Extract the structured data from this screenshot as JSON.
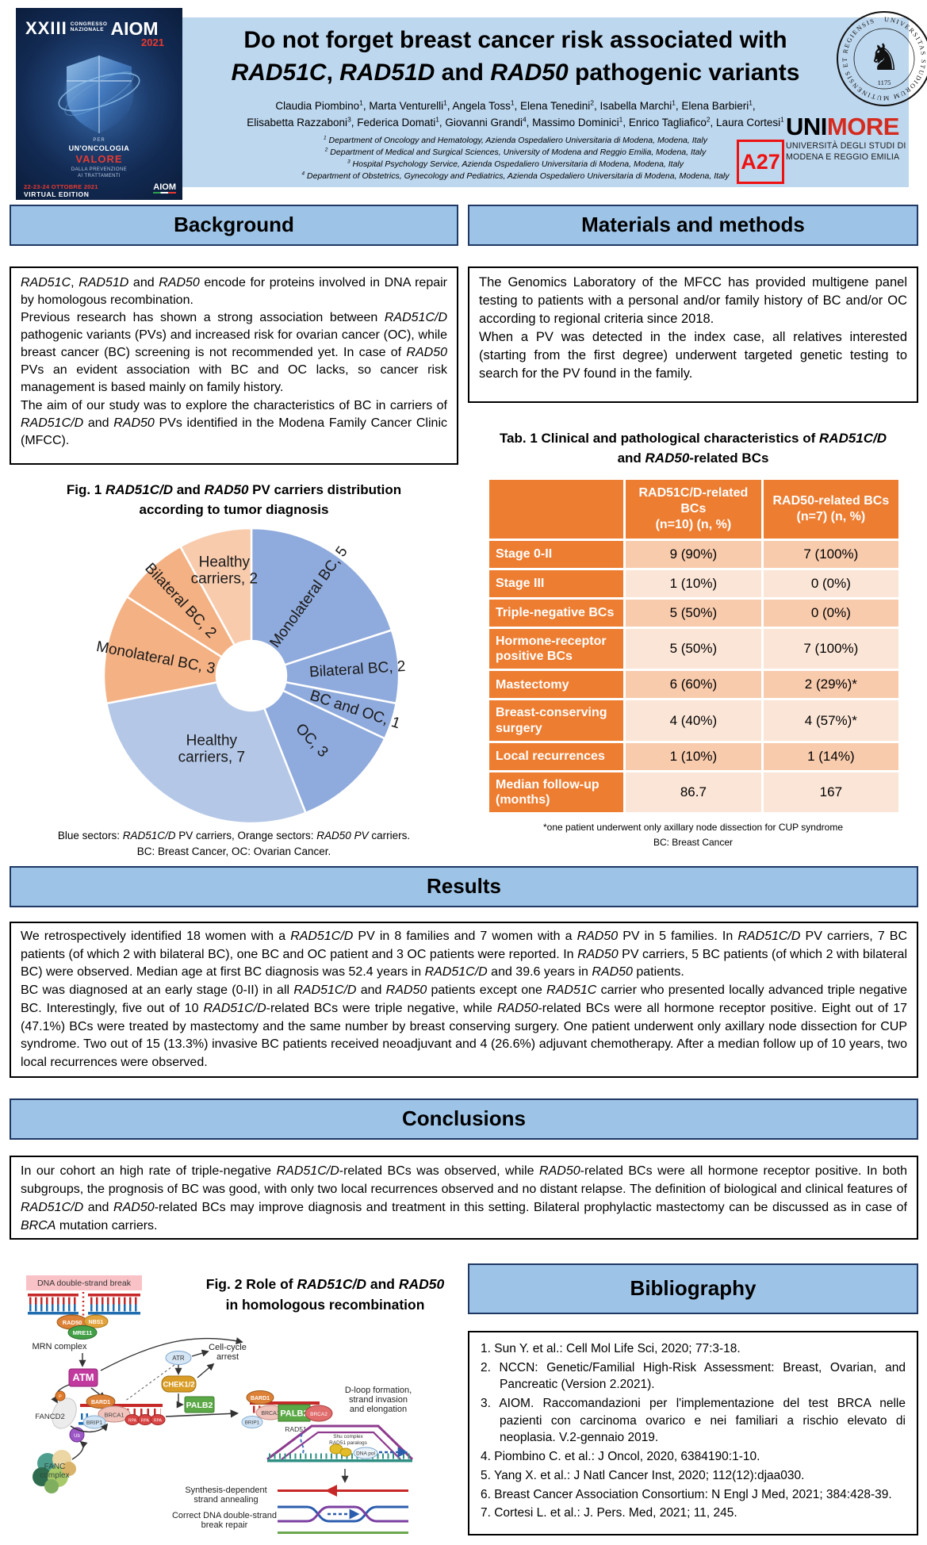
{
  "aiom_poster": {
    "xxiii": "XXIII",
    "congresso": "CONGRESSO",
    "nazionale": "NAZIONALE",
    "aiom": "AIOM",
    "year": "2021",
    "per": "PER",
    "slogan1": "UN'ONCOLOGIA",
    "slogan2": "VALORE",
    "sub1": "DALLA PREVENZIONE",
    "sub2": "AI TRATTAMENTI",
    "dates": "22-23-24 OTTOBRE 2021",
    "virtual": "VIRTUAL EDITION",
    "logo": "AIOM"
  },
  "header": {
    "title_line1": "Do not forget breast cancer risk associated with",
    "title_line2": [
      {
        "t": "RAD51C",
        "i": true
      },
      {
        "t": ", "
      },
      {
        "t": "RAD51D",
        "i": true
      },
      {
        "t": " and "
      },
      {
        "t": "RAD50",
        "i": true
      },
      {
        "t": " pathogenic variants"
      }
    ],
    "authors_line1": [
      {
        "t": "Claudia Piombino"
      },
      {
        "t": "1",
        "sup": true
      },
      {
        "t": ", Marta Venturelli"
      },
      {
        "t": "1",
        "sup": true
      },
      {
        "t": ", Angela Toss"
      },
      {
        "t": "1",
        "sup": true
      },
      {
        "t": ", Elena Tenedini"
      },
      {
        "t": "2",
        "sup": true
      },
      {
        "t": ", Isabella Marchi"
      },
      {
        "t": "1",
        "sup": true
      },
      {
        "t": ", Elena Barbieri"
      },
      {
        "t": "1",
        "sup": true
      },
      {
        "t": ","
      }
    ],
    "authors_line2": [
      {
        "t": "Elisabetta Razzaboni"
      },
      {
        "t": "3",
        "sup": true
      },
      {
        "t": ", Federica Domati"
      },
      {
        "t": "1",
        "sup": true
      },
      {
        "t": ", Giovanni Grandi"
      },
      {
        "t": "4",
        "sup": true
      },
      {
        "t": ", Massimo Dominici"
      },
      {
        "t": "1",
        "sup": true
      },
      {
        "t": ", Enrico Tagliafico"
      },
      {
        "t": "2",
        "sup": true
      },
      {
        "t": ", Laura Cortesi"
      },
      {
        "t": "1",
        "sup": true
      }
    ],
    "affiliations": [
      {
        "n": "1",
        "text": " Department of Oncology and Hematology, Azienda Ospedaliero Universitaria di Modena, Modena, Italy"
      },
      {
        "n": "2",
        "text": " Department of Medical and Surgical Sciences, University of Modena and Reggio Emilia, Modena, Italy"
      },
      {
        "n": "3",
        "text": " Hospital Psychology Service, Azienda Ospedaliero Universitaria di Modena, Modena, Italy"
      },
      {
        "n": "4",
        "text": " Department of Obstetrics, Gynecology and Pediatrics, Azienda Ospedaliero Universitaria di Modena, Modena, Italy"
      }
    ],
    "badge": "A27",
    "unimore": {
      "seal_text": "UNIVERSITAS STUDIORUM MUTINENSIS ET REGIENSIS",
      "seal_year": "1175",
      "wordmark_black": "UNI",
      "wordmark_red": "MORE",
      "subtitle1": "UNIVERSITÀ DEGLI STUDI DI",
      "subtitle2": "MODENA E REGGIO EMILIA"
    }
  },
  "background": {
    "heading": "Background",
    "paragraphs": [
      [
        {
          "t": "RAD51C",
          "i": true
        },
        {
          "t": ", "
        },
        {
          "t": "RAD51D",
          "i": true
        },
        {
          "t": " and "
        },
        {
          "t": "RAD50",
          "i": true
        },
        {
          "t": " encode for proteins involved in DNA repair by homologous recombination."
        }
      ],
      [
        {
          "t": "Previous research has shown a strong association between "
        },
        {
          "t": "RAD51C/D",
          "i": true
        },
        {
          "t": " pathogenic variants (PVs) and increased risk for ovarian cancer (OC), while breast cancer (BC) screening is not recommended yet. In case of "
        },
        {
          "t": "RAD50",
          "i": true
        },
        {
          "t": " PVs an evident association with BC and OC lacks, so cancer risk management is based mainly on family history."
        }
      ],
      [
        {
          "t": "The aim of our study was to explore the characteristics of BC in carriers of "
        },
        {
          "t": "RAD51C/D",
          "i": true
        },
        {
          "t": " and "
        },
        {
          "t": "RAD50",
          "i": true
        },
        {
          "t": " PVs identified in the Modena Family Cancer Clinic (MFCC)."
        }
      ]
    ]
  },
  "methods": {
    "heading": "Materials and methods",
    "paragraphs": [
      "The Genomics Laboratory of the MFCC has provided multigene panel testing to patients with a personal and/or family history of BC and/or OC according to regional criteria since 2018.",
      "When a PV was detected in the index case, all relatives interested (starting from the first degree) underwent targeted genetic testing to search for the PV found in the family."
    ]
  },
  "figure1": {
    "title_line1": [
      {
        "t": "Fig. 1 "
      },
      {
        "t": "RAD51C/D",
        "i": true
      },
      {
        "t": " and "
      },
      {
        "t": "RAD50",
        "i": true
      },
      {
        "t": " PV carriers distribution"
      }
    ],
    "title_line2": "according to tumor diagnosis",
    "caption_line1": [
      {
        "t": "Blue sectors: "
      },
      {
        "t": "RAD51C/D",
        "i": true
      },
      {
        "t": " PV carriers, Orange sectors: "
      },
      {
        "t": "RAD50 PV",
        "i": true
      },
      {
        "t": " carriers."
      }
    ],
    "caption_line2": "BC: Breast Cancer, OC: Ovarian Cancer."
  },
  "chart_data": {
    "type": "pie",
    "donut": true,
    "title": "Fig. 1 RAD51C/D and RAD50 PV carriers distribution according to tumor diagnosis",
    "legend": "Blue sectors: RAD51C/D PV carriers, Orange sectors: RAD50 PV carriers. BC: Breast Cancer, OC: Ovarian Cancer.",
    "start_angle_deg": 0,
    "direction": "clockwise",
    "total": 25,
    "slices": [
      {
        "label": "Monolateral BC",
        "value": 5,
        "group": "RAD51C/D PV carriers",
        "color": "#8FAADC",
        "lr": 0.66
      },
      {
        "label": "Bilateral BC",
        "value": 2,
        "group": "RAD51C/D PV carriers",
        "color": "#8FAADC",
        "lr": 0.72
      },
      {
        "label": "BC and OC",
        "value": 1,
        "group": "RAD51C/D PV carriers",
        "color": "#8FAADC",
        "lr": 0.74
      },
      {
        "label": "OC",
        "value": 3,
        "group": "RAD51C/D PV carriers",
        "color": "#8FAADC",
        "lr": 0.6
      },
      {
        "label": "Healthy carriers",
        "value": 7,
        "group": "RAD51C/D PV carriers",
        "color": "#B4C7E7",
        "lr": 0.56,
        "two_line": true
      },
      {
        "label": "Monolateral BC",
        "value": 3,
        "group": "RAD50 PV carriers",
        "color": "#F4B183",
        "lr": 0.66
      },
      {
        "label": "Bilateral BC",
        "value": 2,
        "group": "RAD50 PV carriers",
        "color": "#F4B183",
        "lr": 0.7
      },
      {
        "label": "Healthy carriers",
        "value": 2,
        "group": "RAD50 PV carriers",
        "color": "#F8CBAD",
        "lr": 0.74,
        "two_line": true
      }
    ]
  },
  "table": {
    "title_line1": [
      {
        "t": "Tab. 1 Clinical and pathological characteristics of "
      },
      {
        "t": "RAD51C/D",
        "i": true
      }
    ],
    "title_line2": [
      {
        "t": "and "
      },
      {
        "t": "RAD50",
        "i": true
      },
      {
        "t": "-related BCs"
      }
    ],
    "col1_header_line1": "RAD51C/D-related BCs",
    "col1_header_line2": "(n=10) (n, %)",
    "col2_header_line1": "RAD50-related BCs",
    "col2_header_line2": "(n=7) (n, %)",
    "rows": [
      {
        "label": "Stage 0-II",
        "c1": "9 (90%)",
        "c2": "7 (100%)"
      },
      {
        "label": "Stage III",
        "c1": "1 (10%)",
        "c2": "0 (0%)"
      },
      {
        "label": "Triple-negative BCs",
        "c1": "5 (50%)",
        "c2": "0 (0%)"
      },
      {
        "label": "Hormone-receptor positive BCs",
        "c1": "5 (50%)",
        "c2": "7 (100%)"
      },
      {
        "label": "Mastectomy",
        "c1": "6 (60%)",
        "c2": "2 (29%)*"
      },
      {
        "label": "Breast-conserving surgery",
        "c1": "4 (40%)",
        "c2": "4 (57%)*"
      },
      {
        "label": "Local recurrences",
        "c1": "1 (10%)",
        "c2": "1 (14%)"
      },
      {
        "label": "Median follow-up (months)",
        "c1": "86.7",
        "c2": "167"
      }
    ],
    "footnote1": "*one patient underwent only axillary node dissection for CUP syndrome",
    "footnote2": "BC: Breast Cancer"
  },
  "results": {
    "heading": "Results",
    "paragraphs": [
      [
        {
          "t": "We retrospectively identified 18 women with a "
        },
        {
          "t": "RAD51C/D",
          "i": true
        },
        {
          "t": " PV in 8 families and 7 women with a "
        },
        {
          "t": "RAD50",
          "i": true
        },
        {
          "t": " PV in 5 families. In "
        },
        {
          "t": "RAD51C/D",
          "i": true
        },
        {
          "t": " PV carriers, 7 BC patients (of which 2 with bilateral BC), one BC and OC patient and 3 OC patients were reported. In "
        },
        {
          "t": "RAD50",
          "i": true
        },
        {
          "t": " PV carriers, 5 BC patients (of which 2 with bilateral BC) were observed. Median age at first BC diagnosis was 52.4 years in "
        },
        {
          "t": "RAD51C/D",
          "i": true
        },
        {
          "t": " and 39.6 years in "
        },
        {
          "t": "RAD50",
          "i": true
        },
        {
          "t": " patients."
        }
      ],
      [
        {
          "t": "BC was diagnosed at an early stage (0-II) in all "
        },
        {
          "t": "RAD51C/D",
          "i": true
        },
        {
          "t": " and "
        },
        {
          "t": "RAD50",
          "i": true
        },
        {
          "t": " patients except one "
        },
        {
          "t": "RAD51C",
          "i": true
        },
        {
          "t": " carrier who presented locally advanced triple negative BC. Interestingly, five out of 10 "
        },
        {
          "t": "RAD51C/D",
          "i": true
        },
        {
          "t": "-related BCs were triple negative, while "
        },
        {
          "t": "RAD50",
          "i": true
        },
        {
          "t": "-related BCs were all hormone receptor positive. Eight out of 17 (47.1%) BCs were treated by mastectomy and the same number by breast conserving surgery. One patient underwent only axillary node dissection for CUP syndrome. Two out of 15 (13.3%) invasive BC patients received neoadjuvant and 4 (26.6%) adjuvant chemotherapy. After a median follow up of 10 years, two local recurrences were observed."
        }
      ]
    ]
  },
  "conclusions": {
    "heading": "Conclusions",
    "paragraphs": [
      [
        {
          "t": "In our cohort an high rate of triple-negative "
        },
        {
          "t": "RAD51C/D",
          "i": true
        },
        {
          "t": "-related BCs was observed, while "
        },
        {
          "t": "RAD50",
          "i": true
        },
        {
          "t": "-related BCs were all hormone receptor positive. In both subgroups, the prognosis of BC was good, with only two local recurrences observed and no distant relapse. The definition of biological and clinical features of "
        },
        {
          "t": "RAD51C/D",
          "i": true
        },
        {
          "t": " and "
        },
        {
          "t": "RAD50",
          "i": true
        },
        {
          "t": "-related BCs may improve diagnosis and treatment in this setting. Bilateral prophylactic mastectomy can be discussed as in case of "
        },
        {
          "t": "BRCA",
          "i": true
        },
        {
          "t": " mutation carriers."
        }
      ]
    ]
  },
  "figure2": {
    "title_line1": [
      {
        "t": "Fig. 2 Role of "
      },
      {
        "t": "RAD51C/D",
        "i": true
      },
      {
        "t": " and "
      },
      {
        "t": "RAD50",
        "i": true
      }
    ],
    "title_line2": "in homologous recombination",
    "labels": {
      "dna_break": "DNA double-strand break",
      "rad50": "RAD50",
      "nbs1": "NBS1",
      "mre11": "MRE11",
      "mrn": "MRN complex",
      "atm": "ATM",
      "atr": "ATR",
      "chek": "CHEK1/2",
      "cc1": "Cell-cycle",
      "cc2": "arrest",
      "palb2": "PALB2",
      "bard1": "BARD1",
      "brca1": "BRCA1",
      "brip1": "BRIP1",
      "rpa1": "RPA",
      "rpa2": "RPA",
      "rpa3": "RPA",
      "p": "P",
      "fancd2": "FANCD2",
      "ub": "Ub",
      "fanc1": "FANC",
      "fanc2": "complex",
      "dloop1": "D-loop formation,",
      "dloop2": "strand invasion",
      "dloop3": "and elongation",
      "bard1b": "BARD1",
      "brca1b": "BRCA1",
      "brip1b": "BRIP1",
      "palb2b": "PALB2",
      "brca2": "BRCA2",
      "rad51": "RAD51",
      "shu1": "Shu complex",
      "shu2": "RAD51 paralogs",
      "dnapol": "DNA pol",
      "sdsa1": "Synthesis-dependent",
      "sdsa2": "strand annealing",
      "correct1": "Correct DNA double-strand",
      "correct2": "break repair"
    }
  },
  "bibliography": {
    "heading": "Bibliography",
    "items": [
      "Sun Y. et al.: Cell Mol Life Sci, 2020; 77:3-18.",
      "NCCN: Genetic/Familial High-Risk Assessment: Breast, Ovarian, and Pancreatic (Version 2.2021).",
      "AIOM. Raccomandazioni per l'implementazione del test BRCA nelle pazienti con carcinoma ovarico e nei familiari a rischio elevato di neoplasia. V.2-gennaio 2019.",
      "Piombino C. et al.: J Oncol, 2020, 6384190:1-10.",
      "Yang X. et al.: J Natl Cancer Inst, 2020; 112(12):djaa030.",
      "Breast Cancer Association Consortium: N Engl J Med, 2021; 384:428-39.",
      "Cortesi L. et al.: J. Pers. Med, 2021; 11, 245."
    ]
  }
}
